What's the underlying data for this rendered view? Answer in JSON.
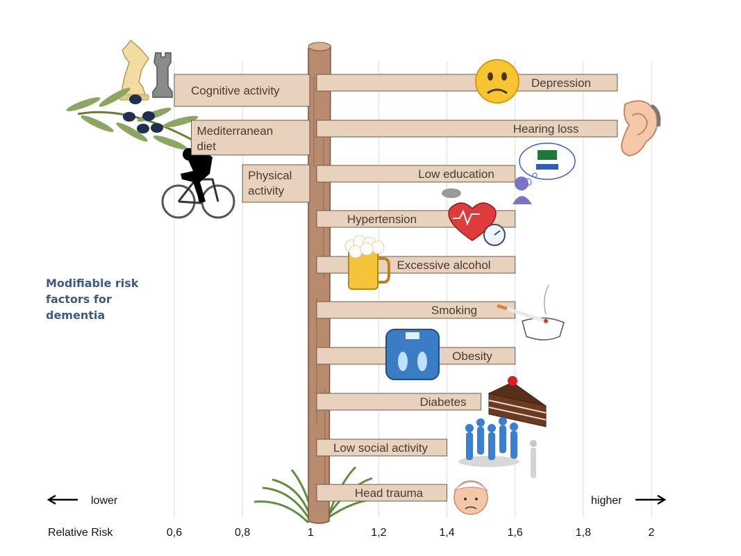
{
  "side_title": "Modifiable risk factors for dementia",
  "axis": {
    "lower_label": "lower",
    "higher_label": "higher",
    "rr_label": "Relative Risk"
  },
  "colors": {
    "sign_fill": "#e8d2be",
    "sign_stroke": "#6b5848",
    "post": "#b98b6e",
    "grid": "#dcdcdc",
    "title": "#3d5a80"
  },
  "icons": [
    "chess-icon",
    "olive-branch-icon",
    "cyclist-icon",
    "sad-face-icon",
    "ear-icon",
    "graduate-thought-icon",
    "heart-pressure-icon",
    "beer-mug-icon",
    "cigarette-ashtray-icon",
    "scale-icon",
    "cake-icon",
    "lonely-people-icon",
    "bandaged-head-icon",
    "grass-icon"
  ],
  "chart_data": {
    "type": "bar",
    "xlim": [
      0.6,
      2.0
    ],
    "baseline": 1.0,
    "grid": true,
    "x_ticks": [
      {
        "value": 0.6,
        "label": "0,6"
      },
      {
        "value": 0.8,
        "label": "0,8"
      },
      {
        "value": 1.0,
        "label": "1"
      },
      {
        "value": 1.2,
        "label": "1,2"
      },
      {
        "value": 1.4,
        "label": "1,4"
      },
      {
        "value": 1.6,
        "label": "1,6"
      },
      {
        "value": 1.8,
        "label": "1,8"
      },
      {
        "value": 2.0,
        "label": "2"
      }
    ],
    "protective": [
      {
        "label": [
          "Cognitive activity"
        ],
        "value": 0.6
      },
      {
        "label": [
          "Mediterranean",
          "diet"
        ],
        "value": 0.65
      },
      {
        "label": [
          "Physical",
          "activity"
        ],
        "value": 0.8
      }
    ],
    "risk": [
      {
        "label": "Depression",
        "value": 1.9
      },
      {
        "label": "Hearing loss",
        "value": 1.9
      },
      {
        "label": "Low education",
        "value": 1.6
      },
      {
        "label": "Hypertension",
        "value": 1.6
      },
      {
        "label": "Excessive alcohol",
        "value": 1.6
      },
      {
        "label": "Smoking",
        "value": 1.6
      },
      {
        "label": "Obesity",
        "value": 1.6
      },
      {
        "label": "Diabetes",
        "value": 1.5
      },
      {
        "label": "Low social activity",
        "value": 1.4
      },
      {
        "label": "Head trauma",
        "value": 1.4
      }
    ]
  }
}
